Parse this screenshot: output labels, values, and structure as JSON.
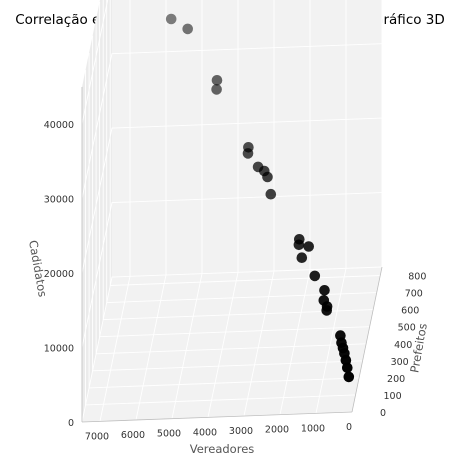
{
  "chart_data": {
    "type": "scatter",
    "projection": "3d",
    "title": "Correlação entre Prefeitos, Vereadores e Cadidatos - Gráfico 3D",
    "axes": {
      "x": {
        "label": "Vereadores",
        "range": [
          0,
          7500
        ],
        "ticks": [
          0,
          1000,
          2000,
          3000,
          4000,
          5000,
          6000,
          7000
        ]
      },
      "y": {
        "label": "Prefeitos",
        "range": [
          0,
          850
        ],
        "ticks": [
          0,
          100,
          200,
          300,
          400,
          500,
          600,
          700,
          800
        ]
      },
      "z": {
        "label": "Cadidatos",
        "range": [
          0,
          45000
        ],
        "ticks": [
          0,
          10000,
          20000,
          30000,
          40000
        ]
      }
    },
    "grid": true,
    "legend": "none",
    "colors": {
      "pane": "#f2f2f2",
      "pane_side": "#ebebeb",
      "grid": "#ffffff",
      "marker": "#000000"
    },
    "points": [
      {
        "x": 7200,
        "y": 820,
        "z": 43800
      },
      {
        "x": 5700,
        "y": 690,
        "z": 38000
      },
      {
        "x": 5200,
        "y": 650,
        "z": 37500
      },
      {
        "x": 4300,
        "y": 560,
        "z": 32500
      },
      {
        "x": 4300,
        "y": 550,
        "z": 31500
      },
      {
        "x": 3300,
        "y": 430,
        "z": 26300
      },
      {
        "x": 3300,
        "y": 420,
        "z": 25700
      },
      {
        "x": 3000,
        "y": 400,
        "z": 24300
      },
      {
        "x": 2800,
        "y": 370,
        "z": 24400
      },
      {
        "x": 2700,
        "y": 360,
        "z": 23800
      },
      {
        "x": 2600,
        "y": 350,
        "z": 21700
      },
      {
        "x": 1700,
        "y": 240,
        "z": 18000
      },
      {
        "x": 1700,
        "y": 230,
        "z": 17500
      },
      {
        "x": 1400,
        "y": 200,
        "z": 17900
      },
      {
        "x": 1600,
        "y": 210,
        "z": 16200
      },
      {
        "x": 1200,
        "y": 170,
        "z": 14600
      },
      {
        "x": 900,
        "y": 140,
        "z": 13300
      },
      {
        "x": 900,
        "y": 120,
        "z": 12400
      },
      {
        "x": 800,
        "y": 110,
        "z": 11800
      },
      {
        "x": 800,
        "y": 100,
        "z": 11500
      },
      {
        "x": 400,
        "y": 80,
        "z": 8500
      },
      {
        "x": 350,
        "y": 60,
        "z": 8000
      },
      {
        "x": 300,
        "y": 50,
        "z": 7500
      },
      {
        "x": 250,
        "y": 40,
        "z": 7000
      },
      {
        "x": 200,
        "y": 30,
        "z": 6300
      },
      {
        "x": 150,
        "y": 20,
        "z": 5500
      },
      {
        "x": 100,
        "y": 10,
        "z": 4500
      }
    ]
  }
}
